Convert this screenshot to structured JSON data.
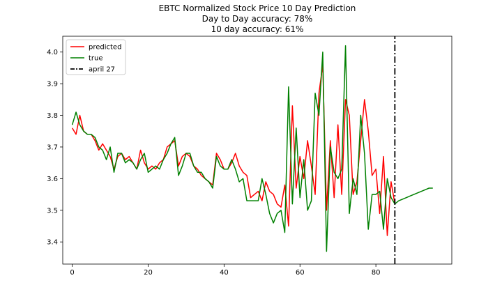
{
  "chart_data": {
    "type": "line",
    "title": [
      "EBTC Normalized Stock Price 10 Day Prediction",
      "Day to Day accuracy: 78%",
      "10 day accuracy: 61%"
    ],
    "xlabel": "",
    "ylabel": "",
    "xlim": [
      -2.5,
      100
    ],
    "ylim": [
      3.33,
      4.05
    ],
    "xticks": [
      0,
      20,
      40,
      60,
      80
    ],
    "yticks": [
      3.4,
      3.5,
      3.6,
      3.7,
      3.8,
      3.9,
      4.0
    ],
    "ytick_labels": [
      "3.4",
      "3.5",
      "3.6",
      "3.7",
      "3.8",
      "3.9",
      "4.0"
    ],
    "grid": false,
    "legend": {
      "position": "top-left"
    },
    "series": [
      {
        "name": "predicted",
        "color": "#ff0000",
        "style": "solid",
        "x": [
          0,
          1,
          2,
          3,
          4,
          5,
          6,
          7,
          8,
          9,
          10,
          11,
          12,
          13,
          14,
          15,
          16,
          17,
          18,
          19,
          20,
          21,
          22,
          23,
          24,
          25,
          26,
          27,
          28,
          29,
          30,
          31,
          32,
          33,
          34,
          35,
          36,
          37,
          38,
          39,
          40,
          41,
          42,
          43,
          44,
          45,
          46,
          47,
          48,
          49,
          50,
          51,
          52,
          53,
          54,
          55,
          56,
          57,
          58,
          59,
          60,
          61,
          62,
          63,
          64,
          65,
          66,
          67,
          68,
          69,
          70,
          71,
          72,
          73,
          74,
          75,
          76,
          77,
          78,
          79,
          80,
          81,
          82,
          83,
          84,
          85
        ],
        "values": [
          3.76,
          3.74,
          3.8,
          3.75,
          3.74,
          3.74,
          3.72,
          3.69,
          3.71,
          3.69,
          3.67,
          3.63,
          3.67,
          3.68,
          3.66,
          3.67,
          3.65,
          3.63,
          3.69,
          3.65,
          3.63,
          3.64,
          3.63,
          3.65,
          3.66,
          3.7,
          3.71,
          3.72,
          3.64,
          3.67,
          3.68,
          3.67,
          3.64,
          3.63,
          3.61,
          3.6,
          3.59,
          3.58,
          3.68,
          3.66,
          3.63,
          3.63,
          3.65,
          3.68,
          3.64,
          3.62,
          3.61,
          3.54,
          3.55,
          3.56,
          3.53,
          3.59,
          3.56,
          3.55,
          3.52,
          3.51,
          3.58,
          3.45,
          3.83,
          3.57,
          3.67,
          3.6,
          3.72,
          3.64,
          3.55,
          3.87,
          3.96,
          3.5,
          3.72,
          3.54,
          3.77,
          3.55,
          3.85,
          3.8,
          3.55,
          3.59,
          3.72,
          3.85,
          3.75,
          3.61,
          3.63,
          3.49,
          3.67,
          3.42,
          3.59,
          3.52
        ]
      },
      {
        "name": "true",
        "color": "#008000",
        "style": "solid",
        "x": [
          0,
          1,
          2,
          3,
          4,
          5,
          6,
          7,
          8,
          9,
          10,
          11,
          12,
          13,
          14,
          15,
          16,
          17,
          18,
          19,
          20,
          21,
          22,
          23,
          24,
          25,
          26,
          27,
          28,
          29,
          30,
          31,
          32,
          33,
          34,
          35,
          36,
          37,
          38,
          39,
          40,
          41,
          42,
          43,
          44,
          45,
          46,
          47,
          48,
          49,
          50,
          51,
          52,
          53,
          54,
          55,
          56,
          57,
          58,
          59,
          60,
          61,
          62,
          63,
          64,
          65,
          66,
          67,
          68,
          69,
          70,
          71,
          72,
          73,
          74,
          75,
          76,
          77,
          78,
          79,
          80,
          81,
          82,
          83,
          84,
          85,
          86,
          87,
          88,
          89,
          90,
          91,
          92,
          93,
          94,
          95
        ],
        "values": [
          3.77,
          3.81,
          3.77,
          3.75,
          3.74,
          3.74,
          3.73,
          3.7,
          3.69,
          3.66,
          3.7,
          3.62,
          3.68,
          3.68,
          3.65,
          3.66,
          3.65,
          3.63,
          3.66,
          3.68,
          3.62,
          3.63,
          3.64,
          3.63,
          3.66,
          3.68,
          3.71,
          3.73,
          3.61,
          3.64,
          3.68,
          3.68,
          3.64,
          3.62,
          3.62,
          3.6,
          3.59,
          3.57,
          3.67,
          3.64,
          3.63,
          3.63,
          3.66,
          3.63,
          3.59,
          3.6,
          3.53,
          3.53,
          3.53,
          3.53,
          3.6,
          3.55,
          3.49,
          3.46,
          3.49,
          3.5,
          3.43,
          3.89,
          3.52,
          3.76,
          3.54,
          3.66,
          3.5,
          3.53,
          3.87,
          3.8,
          4.0,
          3.37,
          3.7,
          3.62,
          3.6,
          3.63,
          4.02,
          3.49,
          3.6,
          3.55,
          3.8,
          3.68,
          3.44,
          3.55,
          3.55,
          3.56,
          3.44,
          3.6,
          3.54,
          3.52,
          3.53,
          3.535,
          3.54,
          3.545,
          3.55,
          3.555,
          3.56,
          3.565,
          3.57,
          3.57
        ]
      },
      {
        "name": "april 27",
        "color": "#000000",
        "style": "dashdot",
        "x": [
          85,
          85
        ],
        "values": [
          3.33,
          4.05
        ]
      }
    ]
  }
}
